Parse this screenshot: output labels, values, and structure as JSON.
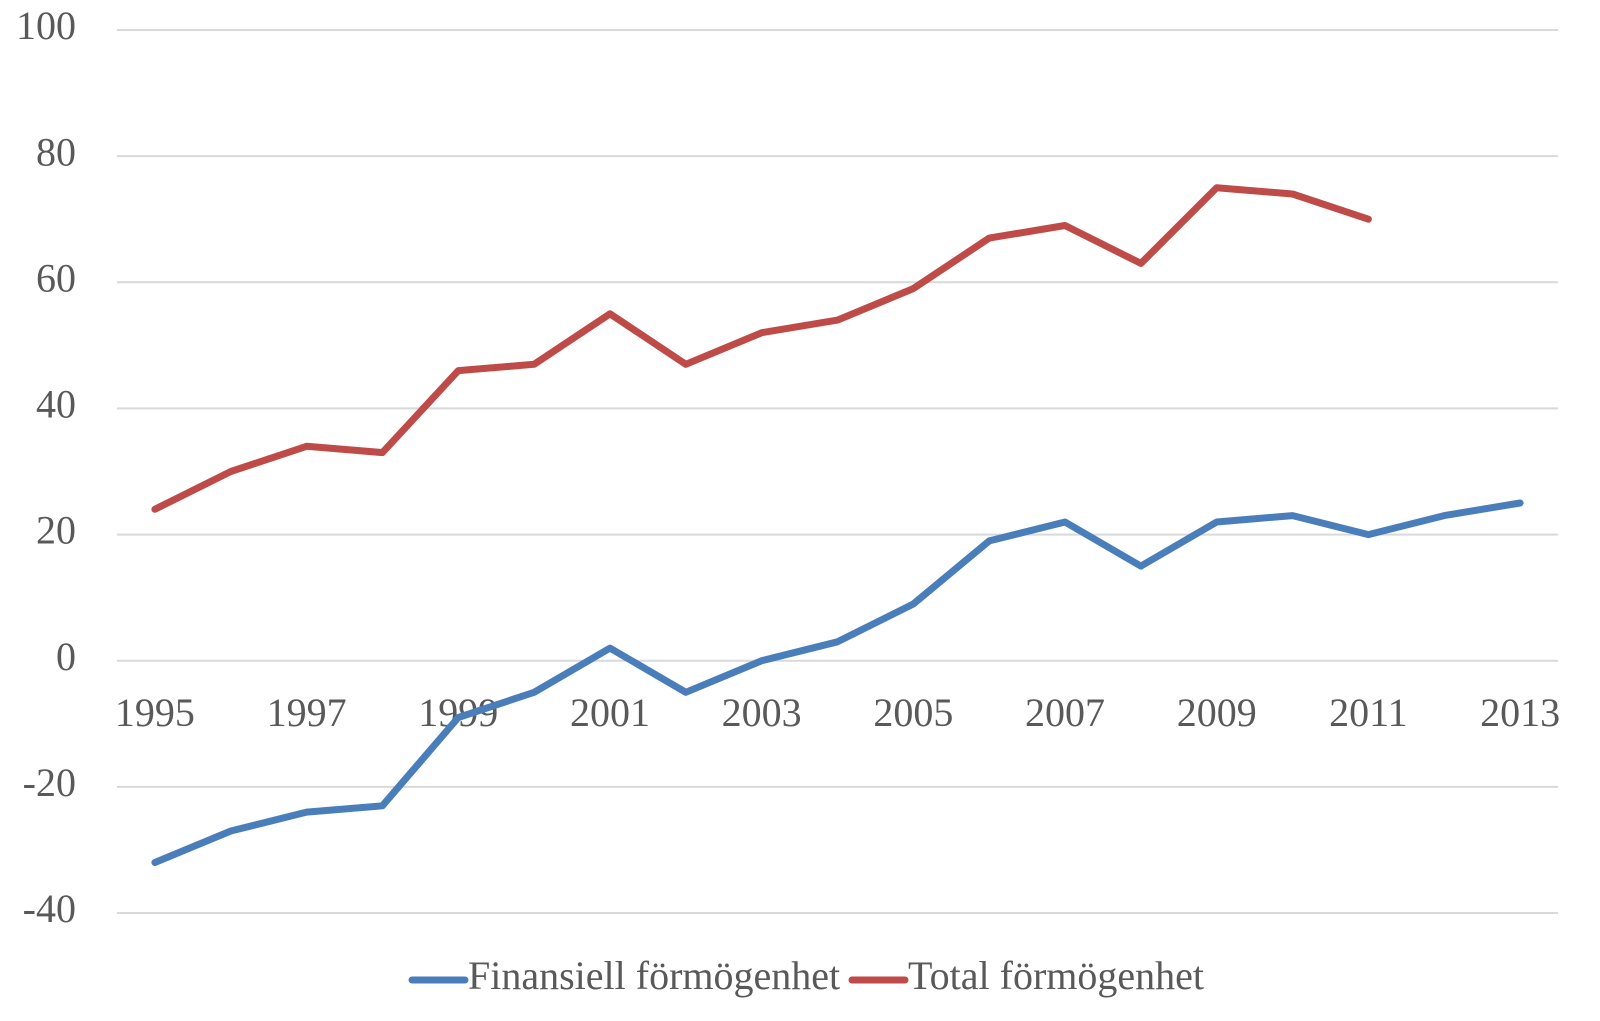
{
  "chart_data": {
    "type": "line",
    "categories": [
      "1995",
      null,
      "1997",
      null,
      "1999",
      null,
      "2001",
      null,
      "2003",
      null,
      "2005",
      null,
      "2007",
      null,
      "2009",
      null,
      "2011",
      null,
      "2013"
    ],
    "series": [
      {
        "name": "Finansiell förmögenhet",
        "color": "#4a7ebb",
        "values": [
          -32,
          -27,
          -24,
          -23,
          -9,
          -5,
          2,
          -5,
          0,
          3,
          9,
          19,
          22,
          15,
          22,
          23,
          20,
          23,
          25
        ]
      },
      {
        "name": "Total förmögenhet",
        "color": "#be4b48",
        "values": [
          24,
          30,
          34,
          33,
          46,
          47,
          55,
          47,
          52,
          54,
          59,
          67,
          69,
          63,
          75,
          74,
          70,
          null,
          null
        ]
      }
    ],
    "ylim": [
      -40,
      100
    ],
    "yticks": [
      -40,
      -20,
      0,
      20,
      40,
      60,
      80,
      100
    ],
    "grid": true,
    "legend": "bottom"
  }
}
